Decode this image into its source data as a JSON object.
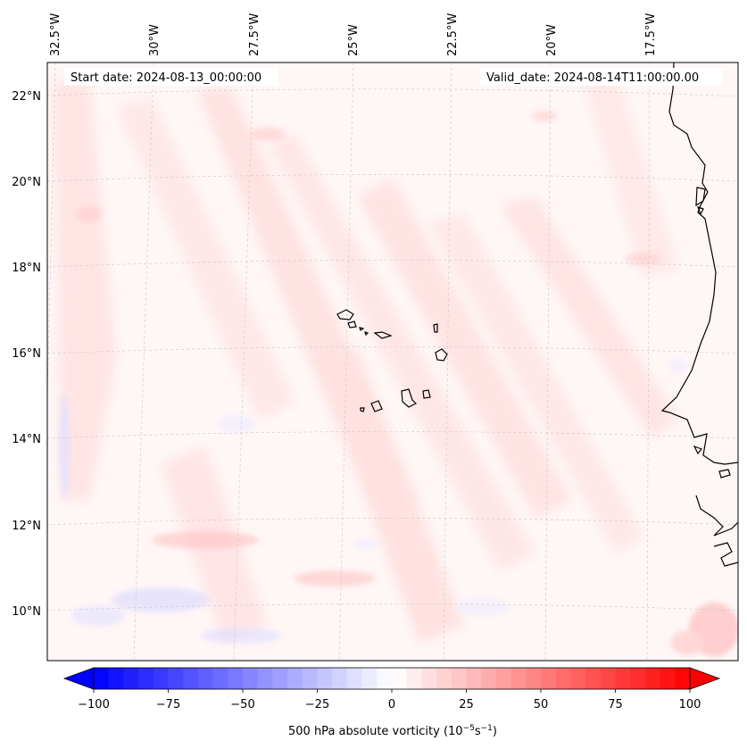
{
  "header": {
    "start_label": "Start date: 2024-08-13_00:00:00",
    "valid_label": "Valid_date: 2024-08-14T11:00:00.00"
  },
  "map": {
    "region": "Cape Verde / West Africa",
    "lon_labels": [
      "32.5°W",
      "30°W",
      "27.5°W",
      "25°W",
      "22.5°W",
      "20°W",
      "17.5°W"
    ],
    "lat_labels": [
      "22°N",
      "20°N",
      "18°N",
      "16°N",
      "14°N",
      "12°N",
      "10°N"
    ],
    "gridlines": true
  },
  "colorbar": {
    "label": "500 hPa absolute vorticity",
    "unit_base": "(10",
    "unit_exp1": "−5",
    "unit_mid": "s",
    "unit_exp2": "−1",
    "unit_end": ")",
    "min": -100,
    "max": 100,
    "ticks": [
      "−100",
      "−75",
      "−50",
      "−25",
      "0",
      "25",
      "50",
      "75",
      "100"
    ],
    "colormap": "bwr",
    "extend": "both"
  },
  "colors": {
    "negative": "#0000ff",
    "neutral": "#ffffff",
    "positive": "#ff0000",
    "coastline": "#000000",
    "grid": "#c8c8c8"
  }
}
